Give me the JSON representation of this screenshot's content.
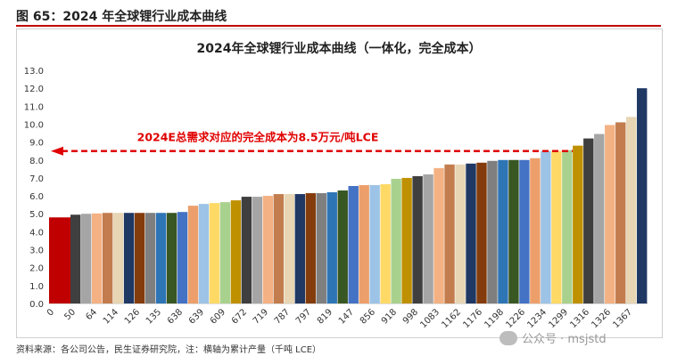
{
  "header": {
    "title": "图 65：2024 年全球锂行业成本曲线"
  },
  "footer": {
    "source": "资料来源：各公司公告，民生证券研究院，注：横轴为累计产量（千吨 LCE）"
  },
  "watermark": {
    "text": "公众号 · msjstd"
  },
  "colors": {
    "first_bar": "#c00000",
    "annotation": "#e00000",
    "palette": [
      "#3f3f3f",
      "#a5a5a5",
      "#f4b183",
      "#c27c4e",
      "#e7d5b3",
      "#1f3864",
      "#843c0c",
      "#7f7f7f",
      "#2e75b6",
      "#385723",
      "#4472c4",
      "#ed9f6b",
      "#9dc3e6",
      "#ffd966",
      "#a9d18e",
      "#bf9000"
    ]
  },
  "chart_data": {
    "type": "bar",
    "title": "2024年全球锂行业成本曲线（一体化，完全成本）",
    "xlabel": "",
    "ylabel": "",
    "ylim": [
      0,
      13
    ],
    "yticks": [
      "0.0",
      "1.0",
      "2.0",
      "3.0",
      "4.0",
      "5.0",
      "6.0",
      "7.0",
      "8.0",
      "9.0",
      "10.0",
      "11.0",
      "12.0",
      "13.0"
    ],
    "xtick_labels": [
      "0",
      "50",
      "64",
      "114",
      "126",
      "135",
      "638",
      "639",
      "609",
      "672",
      "719",
      "787",
      "797",
      "819",
      "147",
      "856",
      "918",
      "998",
      "1083",
      "1162",
      "1176",
      "1198",
      "1226",
      "1234",
      "1299",
      "1316",
      "1326",
      "1367"
    ],
    "values": [
      4.8,
      4.95,
      5.0,
      5.02,
      5.05,
      5.05,
      5.05,
      5.05,
      5.05,
      5.05,
      5.05,
      5.1,
      5.45,
      5.55,
      5.6,
      5.65,
      5.75,
      5.95,
      5.95,
      6.0,
      6.1,
      6.1,
      6.1,
      6.15,
      6.15,
      6.2,
      6.3,
      6.55,
      6.6,
      6.6,
      6.65,
      6.95,
      7.0,
      7.1,
      7.2,
      7.55,
      7.75,
      7.75,
      7.8,
      7.85,
      7.95,
      8.0,
      8.0,
      8.0,
      8.1,
      8.5,
      8.5,
      8.55,
      8.8,
      9.2,
      9.45,
      9.95,
      10.1,
      10.4,
      12.0
    ],
    "reference_line": {
      "value": 8.5,
      "label": "2024E总需求对应的完全成本为8.5万元/吨LCE"
    }
  }
}
